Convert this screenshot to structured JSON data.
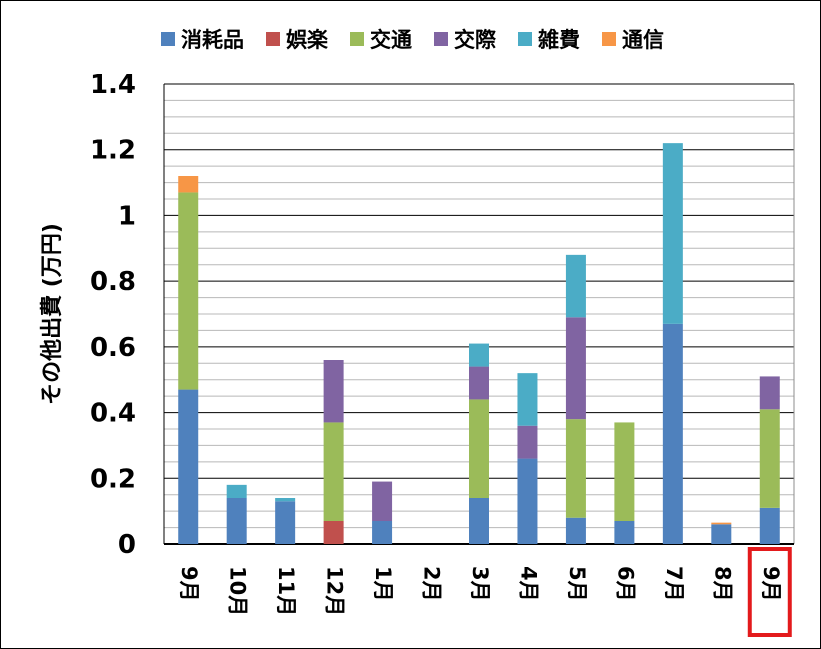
{
  "chart_data": {
    "type": "bar",
    "stacked": true,
    "title": "",
    "xlabel": "",
    "ylabel": "その他出費 (万円)",
    "ylim": [
      0,
      1.4
    ],
    "yticks": [
      "0",
      "0.2",
      "0.4",
      "0.6",
      "0.8",
      "1",
      "1.2",
      "1.4"
    ],
    "grid": true,
    "legend_position": "top",
    "categories": [
      "9月",
      "10月",
      "11月",
      "12月",
      "1月",
      "2月",
      "3月",
      "4月",
      "5月",
      "6月",
      "7月",
      "8月",
      "9月"
    ],
    "highlighted_category_index": 12,
    "highlight_color": "#e31a1c",
    "series": [
      {
        "name": "消耗品",
        "color": "#4f81bd",
        "values": [
          0.47,
          0.14,
          0.13,
          0,
          0.07,
          0,
          0.14,
          0.26,
          0.08,
          0.07,
          0.67,
          0.06,
          0.11
        ]
      },
      {
        "name": "娯楽",
        "color": "#c0504d",
        "values": [
          0,
          0,
          0,
          0.07,
          0,
          0,
          0,
          0,
          0,
          0,
          0,
          0,
          0
        ]
      },
      {
        "name": "交通",
        "color": "#9bbb59",
        "values": [
          0.6,
          0,
          0,
          0.3,
          0,
          0,
          0.3,
          0,
          0.3,
          0.3,
          0,
          0,
          0.3
        ]
      },
      {
        "name": "交際",
        "color": "#8064a2",
        "values": [
          0,
          0,
          0,
          0.19,
          0.12,
          0,
          0.1,
          0.1,
          0.31,
          0,
          0,
          0,
          0.1
        ]
      },
      {
        "name": "雑費",
        "color": "#4bacc6",
        "values": [
          0,
          0.04,
          0.01,
          0,
          0,
          0,
          0.07,
          0.16,
          0.19,
          0,
          0.55,
          0,
          0
        ]
      },
      {
        "name": "通信",
        "color": "#f79646",
        "values": [
          0.05,
          0,
          0,
          0,
          0,
          0,
          0,
          0,
          0,
          0,
          0,
          0.005,
          0
        ]
      }
    ]
  }
}
